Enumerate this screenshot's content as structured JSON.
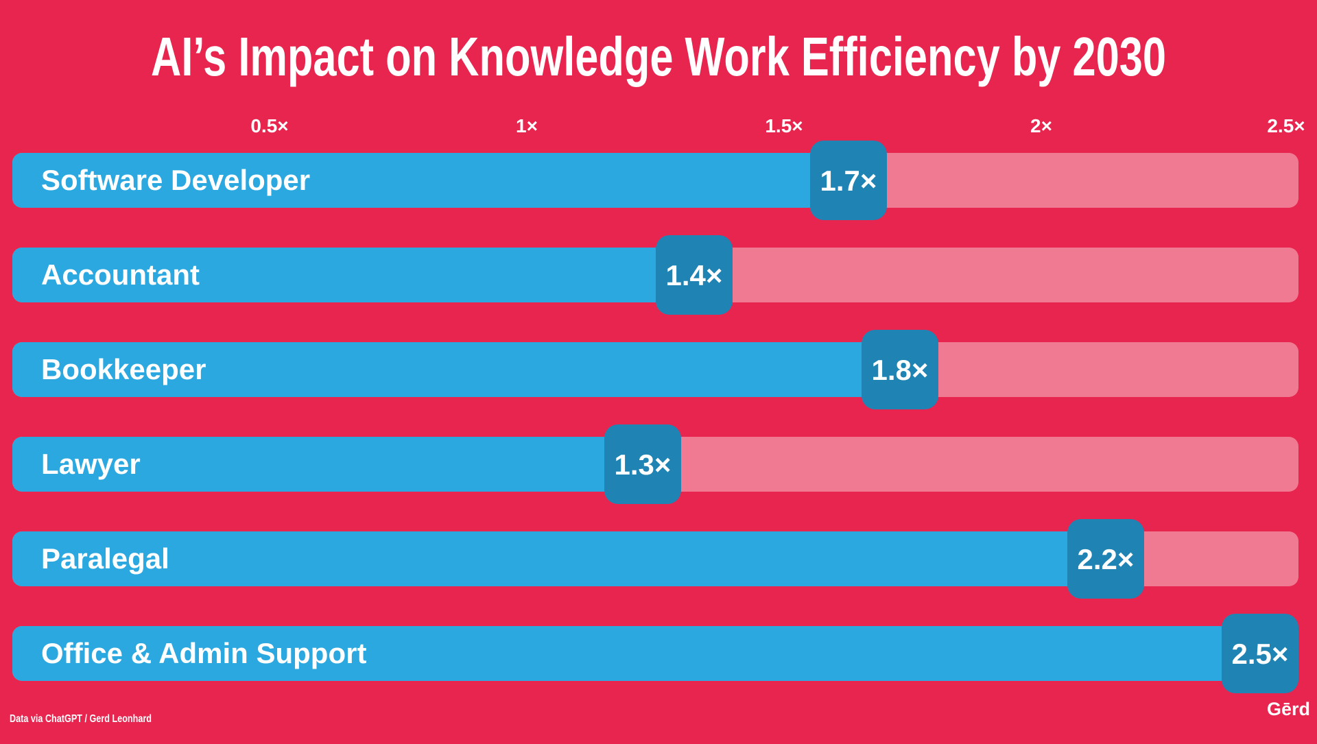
{
  "colors": {
    "background": "#E8254E",
    "track": "#F07A91",
    "bar": "#2CA8E0",
    "badge": "#1F84B4",
    "text": "#FFFFFF"
  },
  "footer": {
    "source": "Data via ChatGPT / Gerd Leonhard",
    "logo": "Gērd"
  },
  "chart_data": {
    "type": "bar",
    "orientation": "horizontal",
    "title": "AI’s Impact on Knowledge Work Efficiency by 2030",
    "xlabel": "",
    "ylabel": "",
    "xlim": [
      0,
      2.5
    ],
    "ticks": [
      {
        "value": 0.5,
        "label": "0.5×"
      },
      {
        "value": 1,
        "label": "1×"
      },
      {
        "value": 1.5,
        "label": "1.5×"
      },
      {
        "value": 2,
        "label": "2×"
      },
      {
        "value": 2.5,
        "label": "2.5×"
      }
    ],
    "categories": [
      "Software Developer",
      "Accountant",
      "Bookkeeper",
      "Lawyer",
      "Paralegal",
      "Office & Admin Support"
    ],
    "values": [
      1.7,
      1.4,
      1.8,
      1.3,
      2.2,
      2.5
    ],
    "value_labels": [
      "1.7×",
      "1.4×",
      "1.8×",
      "1.3×",
      "2.2×",
      "2.5×"
    ],
    "legend": "none",
    "grid": false
  }
}
